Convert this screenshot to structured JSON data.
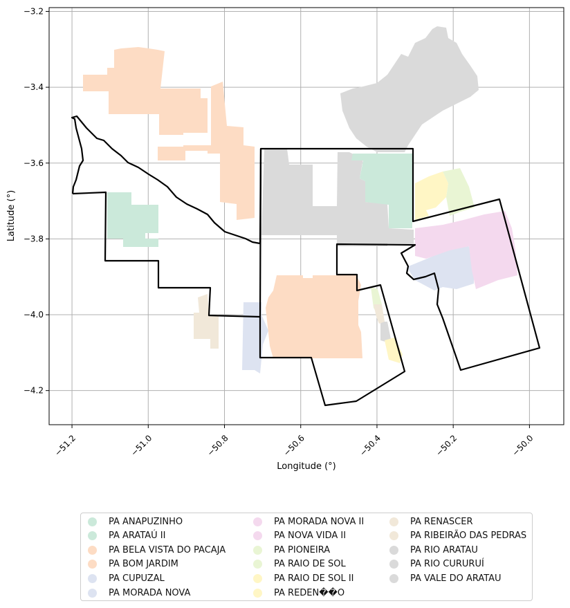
{
  "axes": {
    "xlabel": "Longitude (°)",
    "ylabel": "Latitude (°)",
    "xticks": [
      "−51.2",
      "−51.0",
      "−50.8",
      "−50.6",
      "−50.4",
      "−50.2",
      "−50.0"
    ],
    "yticks": [
      "−3.2",
      "−3.4",
      "−3.6",
      "−3.8",
      "−4.0",
      "−4.2"
    ],
    "xlim": [
      -51.26,
      -49.91
    ],
    "ylim": [
      -4.29,
      -3.19
    ],
    "grid": true
  },
  "colors": {
    "green": "#cbe9da",
    "orange": "#fddcc4",
    "blue": "#dde3f1",
    "pink": "#f4d9ee",
    "lime": "#e9f5d4",
    "yellow": "#fff6c5",
    "beige": "#f1e8d9",
    "gray": "#dadada",
    "outline": "#000000"
  },
  "legend": [
    {
      "label": "PA ANAPUZINHO",
      "color": "#cbe9da"
    },
    {
      "label": "PA ARATAÚ II",
      "color": "#cbe9da"
    },
    {
      "label": "PA BELA VISTA DO PACAJA",
      "color": "#fddcc4"
    },
    {
      "label": "PA BOM JARDIM",
      "color": "#fddcc4"
    },
    {
      "label": "PA CUPUZAL",
      "color": "#dde3f1"
    },
    {
      "label": "PA MORADA NOVA",
      "color": "#dde3f1"
    },
    {
      "label": "PA MORADA NOVA II",
      "color": "#f4d9ee"
    },
    {
      "label": "PA NOVA VIDA II",
      "color": "#f4d9ee"
    },
    {
      "label": "PA PIONEIRA",
      "color": "#e9f5d4"
    },
    {
      "label": "PA RAIO DE SOL",
      "color": "#e9f5d4"
    },
    {
      "label": "PA RAIO DE SOL II",
      "color": "#fff6c5"
    },
    {
      "label": "PA REDEN��O",
      "color": "#fff6c5"
    },
    {
      "label": "PA RENASCER",
      "color": "#f1e8d9"
    },
    {
      "label": "PA RIBEIRÃO DAS PEDRAS",
      "color": "#f1e8d9"
    },
    {
      "label": "PA RIO ARATAU",
      "color": "#dadada"
    },
    {
      "label": "PA RIO CURURUÍ",
      "color": "#dadada"
    },
    {
      "label": "PA VALE DO ARATAU",
      "color": "#dadada"
    }
  ]
}
